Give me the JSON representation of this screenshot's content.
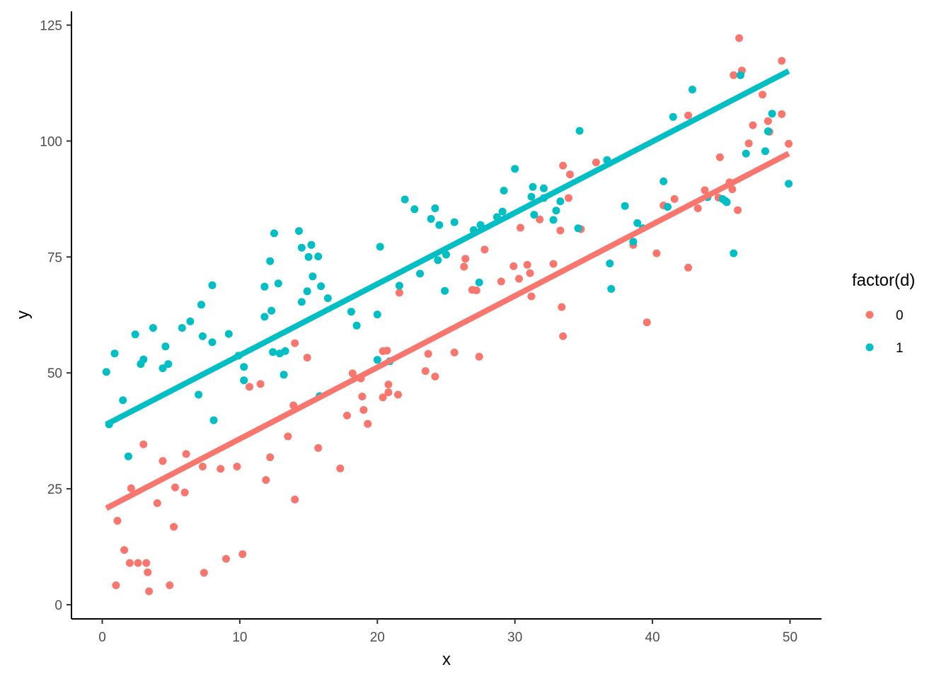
{
  "chart_data": {
    "type": "scatter",
    "xlabel": "x",
    "ylabel": "y",
    "xlim": [
      -2,
      53
    ],
    "ylim": [
      -3,
      128
    ],
    "x_ticks": [
      0,
      10,
      20,
      30,
      40,
      50
    ],
    "y_ticks": [
      0,
      25,
      50,
      75,
      100,
      125
    ],
    "x_tick_labels": [
      "0",
      "10",
      "20",
      "30",
      "40",
      "50"
    ],
    "y_tick_labels": [
      "0",
      "25",
      "50",
      "75",
      "100",
      "125"
    ],
    "grid": false,
    "legend": {
      "title": "factor(d)",
      "placement": "right",
      "entries": [
        "0",
        "1"
      ]
    },
    "series": [
      {
        "name": "0",
        "color": "#F8766D",
        "fit": {
          "x": [
            0.3,
            49.9
          ],
          "y": [
            20.8,
            97.3
          ]
        },
        "points": [
          [
            1.0,
            4.2
          ],
          [
            1.1,
            18.1
          ],
          [
            1.6,
            11.8
          ],
          [
            2.0,
            9.0
          ],
          [
            2.1,
            25.1
          ],
          [
            2.6,
            9.0
          ],
          [
            3.0,
            34.6
          ],
          [
            3.2,
            9.0
          ],
          [
            3.3,
            7.0
          ],
          [
            3.4,
            2.9
          ],
          [
            4.0,
            21.9
          ],
          [
            4.4,
            31.0
          ],
          [
            4.9,
            4.2
          ],
          [
            5.2,
            16.8
          ],
          [
            5.3,
            25.3
          ],
          [
            6.0,
            24.2
          ],
          [
            6.1,
            32.5
          ],
          [
            7.3,
            29.8
          ],
          [
            7.4,
            6.9
          ],
          [
            8.6,
            29.3
          ],
          [
            9.0,
            9.9
          ],
          [
            9.8,
            29.8
          ],
          [
            10.2,
            10.9
          ],
          [
            10.7,
            47.0
          ],
          [
            11.5,
            47.6
          ],
          [
            11.9,
            26.9
          ],
          [
            12.2,
            31.8
          ],
          [
            13.5,
            36.3
          ],
          [
            13.9,
            43.0
          ],
          [
            14.0,
            22.7
          ],
          [
            14.0,
            56.4
          ],
          [
            14.9,
            53.3
          ],
          [
            15.7,
            33.8
          ],
          [
            17.3,
            29.4
          ],
          [
            17.8,
            40.8
          ],
          [
            18.2,
            49.9
          ],
          [
            18.8,
            48.8
          ],
          [
            18.9,
            44.9
          ],
          [
            19.0,
            42.0
          ],
          [
            19.3,
            39.0
          ],
          [
            20.4,
            54.7
          ],
          [
            20.4,
            44.7
          ],
          [
            20.7,
            54.8
          ],
          [
            20.8,
            47.5
          ],
          [
            20.8,
            45.8
          ],
          [
            21.5,
            45.3
          ],
          [
            21.6,
            67.3
          ],
          [
            23.5,
            50.4
          ],
          [
            23.7,
            54.1
          ],
          [
            24.2,
            49.2
          ],
          [
            25.6,
            54.4
          ],
          [
            26.3,
            72.9
          ],
          [
            26.4,
            74.6
          ],
          [
            26.9,
            67.9
          ],
          [
            27.2,
            67.8
          ],
          [
            27.4,
            53.5
          ],
          [
            27.8,
            76.6
          ],
          [
            29.0,
            69.7
          ],
          [
            29.9,
            73.0
          ],
          [
            30.3,
            70.3
          ],
          [
            30.4,
            81.3
          ],
          [
            30.9,
            73.3
          ],
          [
            31.1,
            71.5
          ],
          [
            31.2,
            66.5
          ],
          [
            31.8,
            83.1
          ],
          [
            32.8,
            73.5
          ],
          [
            33.3,
            80.7
          ],
          [
            33.4,
            64.2
          ],
          [
            33.5,
            57.9
          ],
          [
            33.5,
            94.7
          ],
          [
            33.9,
            87.7
          ],
          [
            34.0,
            92.8
          ],
          [
            34.8,
            81.0
          ],
          [
            35.9,
            95.4
          ],
          [
            38.6,
            77.6
          ],
          [
            39.6,
            60.9
          ],
          [
            40.3,
            75.8
          ],
          [
            40.8,
            86.1
          ],
          [
            41.6,
            87.5
          ],
          [
            42.6,
            72.7
          ],
          [
            42.6,
            105.5
          ],
          [
            43.3,
            85.5
          ],
          [
            43.8,
            89.4
          ],
          [
            44.8,
            87.8
          ],
          [
            44.9,
            96.5
          ],
          [
            45.6,
            91.1
          ],
          [
            45.8,
            89.6
          ],
          [
            45.9,
            114.2
          ],
          [
            46.2,
            85.1
          ],
          [
            46.3,
            122.2
          ],
          [
            46.5,
            115.2
          ],
          [
            47.0,
            99.5
          ],
          [
            47.3,
            103.4
          ],
          [
            48.0,
            110.0
          ],
          [
            48.4,
            104.3
          ],
          [
            48.5,
            102.0
          ],
          [
            49.4,
            117.3
          ],
          [
            49.4,
            105.8
          ],
          [
            49.9,
            99.4
          ]
        ]
      },
      {
        "name": "1",
        "color": "#00BFC4",
        "fit": {
          "x": [
            0.3,
            49.9
          ],
          "y": [
            38.9,
            115.1
          ]
        },
        "points": [
          [
            0.3,
            50.2
          ],
          [
            0.5,
            38.9
          ],
          [
            0.9,
            54.2
          ],
          [
            1.5,
            44.1
          ],
          [
            1.9,
            32.0
          ],
          [
            2.4,
            58.3
          ],
          [
            2.8,
            51.9
          ],
          [
            3.0,
            52.9
          ],
          [
            3.7,
            59.7
          ],
          [
            4.4,
            51.0
          ],
          [
            4.6,
            55.7
          ],
          [
            4.8,
            51.9
          ],
          [
            5.8,
            59.7
          ],
          [
            6.4,
            61.1
          ],
          [
            7.0,
            45.3
          ],
          [
            7.2,
            64.7
          ],
          [
            7.3,
            57.9
          ],
          [
            8.0,
            56.6
          ],
          [
            8.0,
            68.9
          ],
          [
            8.1,
            39.8
          ],
          [
            9.2,
            58.4
          ],
          [
            9.9,
            53.7
          ],
          [
            10.3,
            51.3
          ],
          [
            10.3,
            48.4
          ],
          [
            11.8,
            68.6
          ],
          [
            11.8,
            62.1
          ],
          [
            12.2,
            74.1
          ],
          [
            12.3,
            63.4
          ],
          [
            12.4,
            54.5
          ],
          [
            12.5,
            80.1
          ],
          [
            12.8,
            69.3
          ],
          [
            12.9,
            54.2
          ],
          [
            13.2,
            49.6
          ],
          [
            13.3,
            54.7
          ],
          [
            14.3,
            80.6
          ],
          [
            14.5,
            77.0
          ],
          [
            14.5,
            65.3
          ],
          [
            14.9,
            67.6
          ],
          [
            15.0,
            75.0
          ],
          [
            15.2,
            77.6
          ],
          [
            15.3,
            70.8
          ],
          [
            15.7,
            75.1
          ],
          [
            15.8,
            45.0
          ],
          [
            15.9,
            68.7
          ],
          [
            16.4,
            66.1
          ],
          [
            18.1,
            63.2
          ],
          [
            18.5,
            60.2
          ],
          [
            20.0,
            52.8
          ],
          [
            20.0,
            62.6
          ],
          [
            20.2,
            77.2
          ],
          [
            20.9,
            52.5
          ],
          [
            21.6,
            68.8
          ],
          [
            22.0,
            87.4
          ],
          [
            22.7,
            85.3
          ],
          [
            23.1,
            71.4
          ],
          [
            23.9,
            83.2
          ],
          [
            24.2,
            85.5
          ],
          [
            24.4,
            74.3
          ],
          [
            24.5,
            81.9
          ],
          [
            24.9,
            67.7
          ],
          [
            25.0,
            75.5
          ],
          [
            25.6,
            82.5
          ],
          [
            27.0,
            80.8
          ],
          [
            27.4,
            69.5
          ],
          [
            27.5,
            81.9
          ],
          [
            28.7,
            83.6
          ],
          [
            29.1,
            84.8
          ],
          [
            29.2,
            89.3
          ],
          [
            30.0,
            94.0
          ],
          [
            31.2,
            88.0
          ],
          [
            31.3,
            90.1
          ],
          [
            31.4,
            84.1
          ],
          [
            32.1,
            89.8
          ],
          [
            32.1,
            87.7
          ],
          [
            32.8,
            83.0
          ],
          [
            33.0,
            85.0
          ],
          [
            33.3,
            87.0
          ],
          [
            34.6,
            81.2
          ],
          [
            34.7,
            102.2
          ],
          [
            36.7,
            95.9
          ],
          [
            36.9,
            73.6
          ],
          [
            37.0,
            68.1
          ],
          [
            38.0,
            86.0
          ],
          [
            38.6,
            78.3
          ],
          [
            38.9,
            82.3
          ],
          [
            39.3,
            81.2
          ],
          [
            40.8,
            91.3
          ],
          [
            41.1,
            85.8
          ],
          [
            41.5,
            105.2
          ],
          [
            42.9,
            111.1
          ],
          [
            44.0,
            87.9
          ],
          [
            45.1,
            87.5
          ],
          [
            45.3,
            87.1
          ],
          [
            45.4,
            86.8
          ],
          [
            45.9,
            75.8
          ],
          [
            46.4,
            114.2
          ],
          [
            46.8,
            97.3
          ],
          [
            48.2,
            97.8
          ],
          [
            48.4,
            102.1
          ],
          [
            48.7,
            105.9
          ],
          [
            49.9,
            90.8
          ]
        ]
      }
    ]
  }
}
